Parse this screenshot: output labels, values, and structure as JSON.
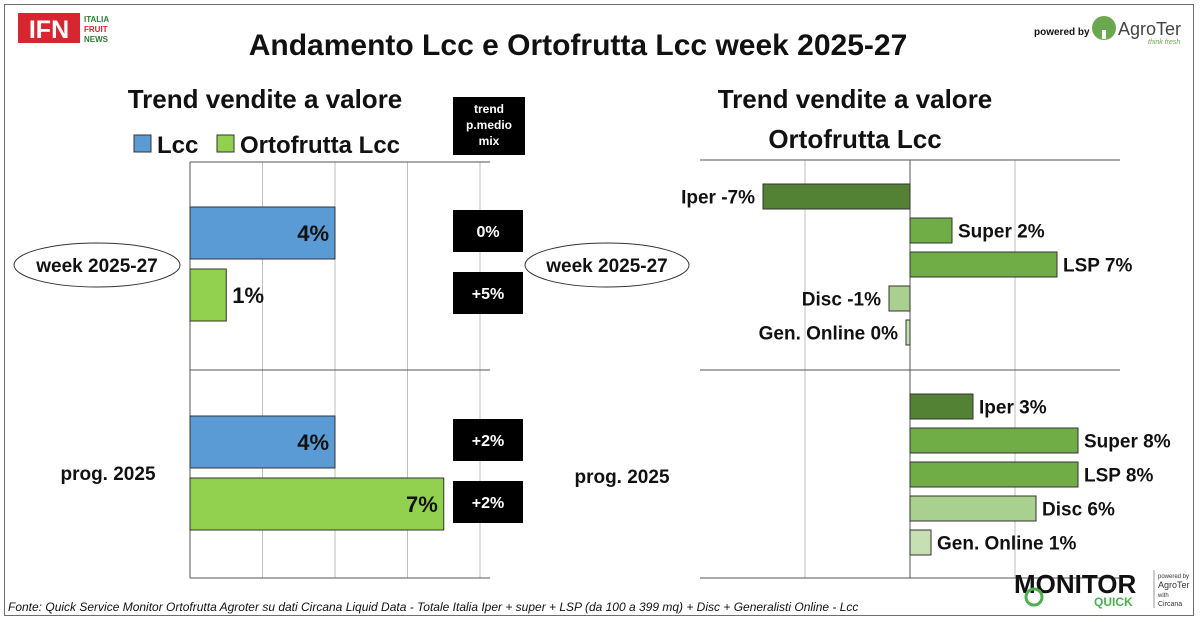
{
  "header": {
    "title": "Andamento Lcc e Ortofrutta Lcc week 2025-27",
    "logo_ifn": "IFN",
    "logo_ifn_sub": [
      "ITALIA",
      "FRUIT",
      "NEWS"
    ],
    "powered_by": "powered by",
    "agroter": "AgroTer",
    "agroter_tagline": "think fresh"
  },
  "left_panel": {
    "title": "Trend vendite a valore",
    "legend": [
      {
        "label": "Lcc",
        "color": "#5b9bd5"
      },
      {
        "label": "Ortofrutta Lcc",
        "color": "#92d050"
      }
    ],
    "mix_header": [
      "trend",
      "p.medio",
      "mix"
    ]
  },
  "right_panel": {
    "title_line1": "Trend vendite a valore",
    "title_line2": "Ortofrutta Lcc"
  },
  "footer": {
    "source": "Fonte: Quick Service Monitor Ortofrutta Agroter su dati Circana Liquid Data - Totale Italia Iper + super + LSP (da 100 a 399 mq) + Disc + Generalisti Online - Lcc",
    "monitor_logo": "MONITOR",
    "monitor_logo_sub": "QUICK",
    "monitor_credit": [
      "powered by",
      "AgroTer",
      "with",
      "Circana"
    ]
  },
  "chart_data": [
    {
      "type": "bar",
      "orientation": "horizontal",
      "title": "Trend vendite a valore",
      "groups": [
        "week 2025-27",
        "prog. 2025"
      ],
      "series": [
        {
          "name": "Lcc",
          "color": "#5b9bd5",
          "values": [
            4,
            4
          ],
          "labels": [
            "4%",
            "4%"
          ]
        },
        {
          "name": "Ortofrutta Lcc",
          "color": "#92d050",
          "values": [
            1,
            7
          ],
          "labels": [
            "1%",
            "7%"
          ]
        }
      ],
      "trend_pmedio_mix": {
        "Lcc": [
          "0%",
          "+2%"
        ],
        "Ortofrutta Lcc": [
          "+5%",
          "+2%"
        ]
      },
      "xlim": [
        0,
        8
      ],
      "grid": true
    },
    {
      "type": "bar",
      "orientation": "horizontal",
      "title": "Trend vendite a valore Ortofrutta Lcc",
      "groups": [
        {
          "name": "week 2025-27",
          "categories": [
            "Iper",
            "Super",
            "LSP",
            "Disc",
            "Gen. Online"
          ],
          "values": [
            -7,
            2,
            7,
            -1,
            0
          ],
          "labels": [
            "Iper -7%",
            "Super 2%",
            "LSP 7%",
            "Disc -1%",
            "Gen. Online 0%"
          ]
        },
        {
          "name": "prog. 2025",
          "categories": [
            "Iper",
            "Super",
            "LSP",
            "Disc",
            "Gen. Online"
          ],
          "values": [
            3,
            8,
            8,
            6,
            1
          ],
          "labels": [
            "Iper 3%",
            "Super 8%",
            "LSP 8%",
            "Disc 6%",
            "Gen. Online 1%"
          ]
        }
      ],
      "category_colors": {
        "Iper": "#548235",
        "Super": "#70ad47",
        "LSP": "#70ad47",
        "Disc": "#a9d08e",
        "Gen. Online": "#c6e0b4"
      },
      "xlim": [
        -10,
        10
      ],
      "grid": true
    }
  ]
}
